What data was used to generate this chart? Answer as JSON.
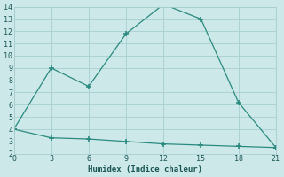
{
  "xlabel": "Humidex (Indice chaleur)",
  "line1_x": [
    0,
    3,
    6,
    9,
    12,
    15,
    18,
    21
  ],
  "line1_y": [
    4,
    9,
    7.5,
    11.8,
    14.2,
    13,
    6.2,
    2.5
  ],
  "line2_x": [
    0,
    3,
    6,
    9,
    12,
    15,
    18,
    21
  ],
  "line2_y": [
    4,
    3.3,
    3.2,
    3.0,
    2.8,
    2.7,
    2.6,
    2.5
  ],
  "line_color": "#2a8a80",
  "bg_color": "#cce8e8",
  "grid_color": "#a8ced0",
  "xlim": [
    0,
    21
  ],
  "ylim": [
    2,
    14
  ],
  "xticks": [
    0,
    3,
    6,
    9,
    12,
    15,
    18,
    21
  ],
  "yticks": [
    2,
    3,
    4,
    5,
    6,
    7,
    8,
    9,
    10,
    11,
    12,
    13,
    14
  ],
  "marker": "+",
  "markersize": 4,
  "markeredgewidth": 1.2,
  "linewidth": 0.9,
  "tick_fontsize": 6,
  "xlabel_fontsize": 6.5
}
